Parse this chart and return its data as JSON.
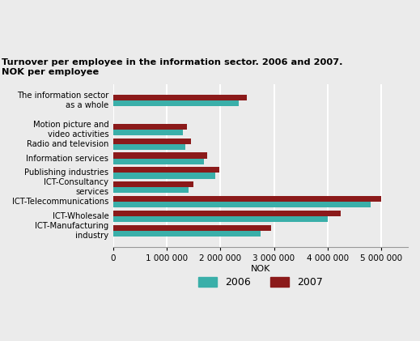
{
  "title_line1": "Turnover per employee in the information sector. 2006 and 2007.",
  "title_line2": "NOK per employee",
  "categories": [
    "The information sector\nas a whole",
    "Motion picture and\nvideo activities",
    "Radio and television",
    "Information services",
    "Publishing industries",
    "ICT-Consultancy\nservices",
    "ICT-Telecommunications",
    "ICT-Wholesale",
    "ICT-Manufacturing\nindustry"
  ],
  "values_2006": [
    2350000,
    1300000,
    1350000,
    1700000,
    1900000,
    1400000,
    4800000,
    4000000,
    2750000
  ],
  "values_2007": [
    2500000,
    1380000,
    1450000,
    1750000,
    1980000,
    1500000,
    5000000,
    4250000,
    2950000
  ],
  "color_2006": "#3aafa9",
  "color_2007": "#8b1a1a",
  "xlabel": "NOK",
  "xlim": [
    0,
    5500000
  ],
  "xticks": [
    0,
    1000000,
    2000000,
    3000000,
    4000000,
    5000000
  ],
  "background_color": "#ebebeb",
  "plot_bg_color": "#ebebeb",
  "grid_color": "#ffffff",
  "legend_labels": [
    "2006",
    "2007"
  ],
  "bar_height": 0.32,
  "y_positions": [
    0,
    1.6,
    2.4,
    3.2,
    4.0,
    4.8,
    5.6,
    6.4,
    7.2
  ]
}
